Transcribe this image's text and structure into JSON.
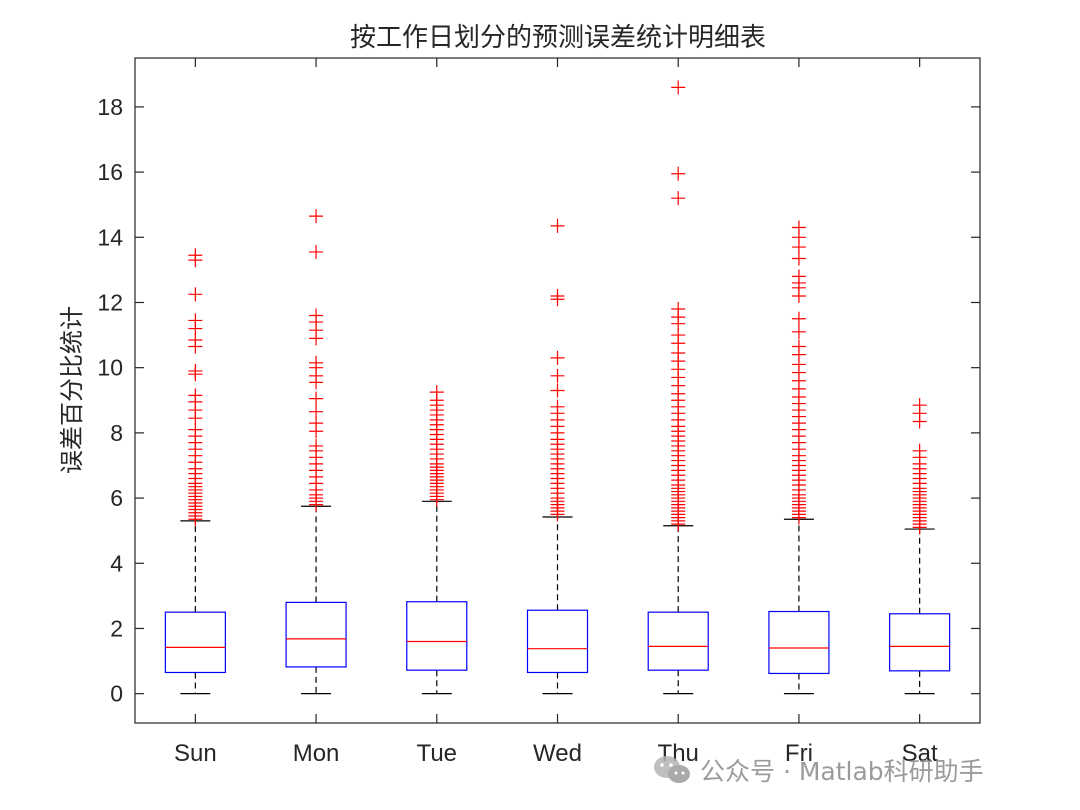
{
  "chart_data": {
    "type": "box",
    "title": "按工作日划分的预测误差统计明细表",
    "xlabel": "",
    "ylabel": "误差百分比统计",
    "ylim": [
      -0.9,
      19.5
    ],
    "yticks": [
      0,
      2,
      4,
      6,
      8,
      10,
      12,
      14,
      16,
      18
    ],
    "grid": false,
    "categories": [
      "Sun",
      "Mon",
      "Tue",
      "Wed",
      "Thu",
      "Fri",
      "Sat"
    ],
    "box_color": "#0000ff",
    "median_color": "#ff0000",
    "whisker_color": "#000000",
    "outlier_color": "#ff0000",
    "boxes": [
      {
        "min": 0,
        "q1": 0.65,
        "median": 1.42,
        "q3": 2.5,
        "max": 5.3,
        "outliers": [
          5.35,
          5.45,
          5.55,
          5.65,
          5.75,
          5.85,
          5.95,
          6.05,
          6.15,
          6.25,
          6.35,
          6.45,
          6.6,
          6.75,
          6.9,
          7.1,
          7.3,
          7.5,
          7.7,
          7.9,
          8.1,
          8.45,
          8.7,
          8.95,
          9.15,
          9.8,
          9.9,
          10.65,
          10.85,
          11.2,
          11.45,
          12.25,
          13.3,
          13.45
        ]
      },
      {
        "min": 0,
        "q1": 0.82,
        "median": 1.68,
        "q3": 2.8,
        "max": 5.75,
        "outliers": [
          5.8,
          5.9,
          6.0,
          6.1,
          6.25,
          6.45,
          6.65,
          6.85,
          7.05,
          7.25,
          7.45,
          7.6,
          8.05,
          8.3,
          8.65,
          9.05,
          9.55,
          9.75,
          10.0,
          10.15,
          10.9,
          11.15,
          11.4,
          11.6,
          13.55,
          14.65
        ]
      },
      {
        "min": 0,
        "q1": 0.72,
        "median": 1.6,
        "q3": 2.82,
        "max": 5.9,
        "outliers": [
          5.95,
          6.05,
          6.15,
          6.25,
          6.35,
          6.45,
          6.55,
          6.65,
          6.75,
          6.85,
          6.95,
          7.05,
          7.2,
          7.35,
          7.5,
          7.65,
          7.8,
          7.95,
          8.1,
          8.25,
          8.4,
          8.55,
          8.7,
          8.85,
          9.0,
          9.25
        ]
      },
      {
        "min": 0,
        "q1": 0.65,
        "median": 1.38,
        "q3": 2.56,
        "max": 5.42,
        "outliers": [
          5.5,
          5.6,
          5.7,
          5.8,
          5.9,
          6.0,
          6.15,
          6.3,
          6.45,
          6.6,
          6.75,
          6.9,
          7.05,
          7.2,
          7.35,
          7.5,
          7.65,
          7.8,
          8.0,
          8.2,
          8.4,
          8.6,
          8.8,
          9.3,
          9.75,
          10.3,
          12.1,
          12.2,
          14.35
        ]
      },
      {
        "min": 0,
        "q1": 0.72,
        "median": 1.45,
        "q3": 2.5,
        "max": 5.15,
        "outliers": [
          5.2,
          5.3,
          5.4,
          5.5,
          5.6,
          5.7,
          5.8,
          5.9,
          6.0,
          6.1,
          6.2,
          6.3,
          6.4,
          6.55,
          6.7,
          6.85,
          7.0,
          7.15,
          7.3,
          7.45,
          7.6,
          7.75,
          7.9,
          8.05,
          8.2,
          8.4,
          8.6,
          8.8,
          9.0,
          9.2,
          9.45,
          9.7,
          9.95,
          10.2,
          10.45,
          10.75,
          11.0,
          11.35,
          11.55,
          11.8,
          15.2,
          15.95,
          18.6
        ]
      },
      {
        "min": 0,
        "q1": 0.62,
        "median": 1.4,
        "q3": 2.52,
        "max": 5.35,
        "outliers": [
          5.4,
          5.5,
          5.6,
          5.7,
          5.8,
          5.9,
          6.0,
          6.1,
          6.25,
          6.4,
          6.55,
          6.7,
          6.85,
          7.0,
          7.15,
          7.3,
          7.5,
          7.7,
          7.9,
          8.1,
          8.3,
          8.5,
          8.7,
          8.9,
          9.1,
          9.35,
          9.6,
          9.85,
          10.1,
          10.4,
          10.65,
          11.1,
          11.5,
          12.2,
          12.45,
          12.6,
          12.8,
          13.35,
          13.7,
          14.0,
          14.3
        ]
      },
      {
        "min": 0,
        "q1": 0.7,
        "median": 1.45,
        "q3": 2.45,
        "max": 5.05,
        "outliers": [
          5.1,
          5.2,
          5.3,
          5.4,
          5.5,
          5.6,
          5.7,
          5.8,
          5.9,
          6.0,
          6.1,
          6.2,
          6.3,
          6.45,
          6.6,
          6.75,
          6.9,
          7.05,
          7.25,
          7.45,
          8.35,
          8.6,
          8.85
        ]
      }
    ]
  },
  "watermark": {
    "icon": "wechat-icon",
    "text": "公众号 · Matlab科研助手"
  }
}
